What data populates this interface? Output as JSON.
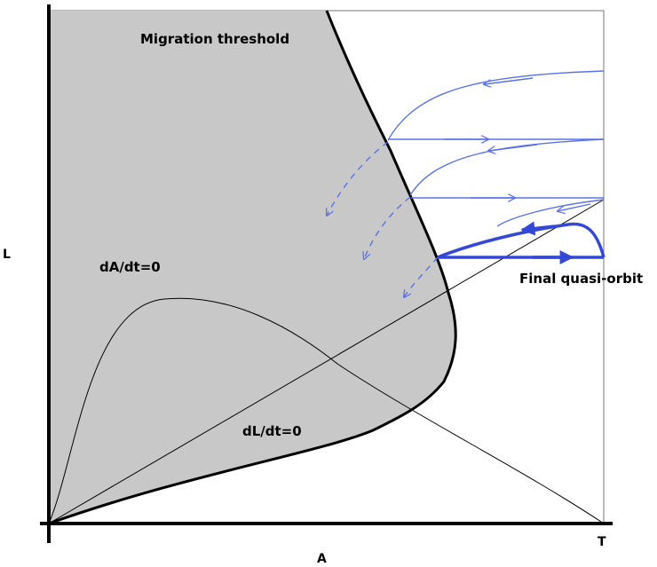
{
  "diagram": {
    "axis_y_label": "L",
    "axis_x_label": "A",
    "x_end_tick_label": "T",
    "region_label": "Migration threshold",
    "nullcline_a_label": "dA/dt=0",
    "nullcline_l_label": "dL/dt=0",
    "orbit_label": "Final quasi-orbit",
    "colors": {
      "region_fill": "#c8c8c8",
      "trajectory": "#5b72e6",
      "orbit": "#3448d8",
      "ink": "#000000"
    }
  }
}
